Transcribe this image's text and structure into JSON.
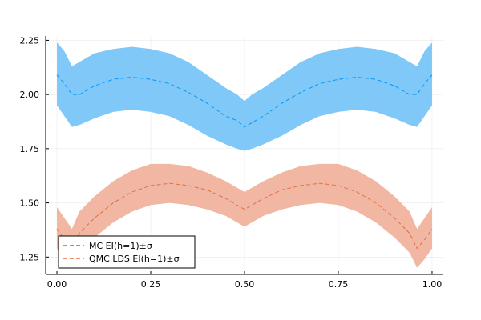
{
  "chart_data": {
    "type": "line",
    "title": "",
    "xlabel": "",
    "ylabel": "",
    "xlim": [
      -0.03,
      1.03
    ],
    "ylim": [
      1.17,
      2.27
    ],
    "xticks": [
      0.0,
      0.25,
      0.5,
      0.75,
      1.0
    ],
    "xtick_labels": [
      "0.00",
      "0.25",
      "0.50",
      "0.75",
      "1.00"
    ],
    "yticks": [
      1.25,
      1.5,
      1.75,
      2.0,
      2.25
    ],
    "ytick_labels": [
      "1.25",
      "1.50",
      "1.75",
      "2.00",
      "2.25"
    ],
    "grid": true,
    "legend_position": "bottom-left",
    "series": [
      {
        "name": "MC EI(h=1)±σ",
        "color": "#009AFA",
        "band_color": "#7FC8F8",
        "x": [
          0.0,
          0.02,
          0.04,
          0.06,
          0.1,
          0.15,
          0.2,
          0.25,
          0.3,
          0.35,
          0.4,
          0.45,
          0.48,
          0.5,
          0.52,
          0.55,
          0.6,
          0.65,
          0.7,
          0.75,
          0.8,
          0.85,
          0.9,
          0.94,
          0.96,
          0.98,
          1.0
        ],
        "mean": [
          2.09,
          2.05,
          2.0,
          2.0,
          2.04,
          2.07,
          2.08,
          2.07,
          2.05,
          2.01,
          1.96,
          1.9,
          1.88,
          1.85,
          1.87,
          1.9,
          1.96,
          2.01,
          2.05,
          2.07,
          2.08,
          2.07,
          2.04,
          2.0,
          2.0,
          2.05,
          2.09
        ],
        "upper": [
          2.24,
          2.2,
          2.13,
          2.15,
          2.19,
          2.21,
          2.22,
          2.21,
          2.19,
          2.15,
          2.09,
          2.03,
          2.0,
          1.97,
          2.0,
          2.03,
          2.09,
          2.15,
          2.19,
          2.21,
          2.22,
          2.21,
          2.19,
          2.15,
          2.13,
          2.2,
          2.24
        ],
        "lower": [
          1.95,
          1.9,
          1.85,
          1.86,
          1.89,
          1.92,
          1.93,
          1.92,
          1.9,
          1.86,
          1.81,
          1.77,
          1.75,
          1.74,
          1.75,
          1.77,
          1.81,
          1.86,
          1.9,
          1.92,
          1.93,
          1.92,
          1.89,
          1.86,
          1.85,
          1.9,
          1.95
        ]
      },
      {
        "name": "QMC LDS EI(h=1)±σ",
        "color": "#E26F46",
        "band_color": "#F1B7A2",
        "x": [
          0.0,
          0.02,
          0.04,
          0.06,
          0.1,
          0.15,
          0.2,
          0.25,
          0.3,
          0.35,
          0.4,
          0.45,
          0.5,
          0.55,
          0.6,
          0.65,
          0.7,
          0.75,
          0.8,
          0.85,
          0.9,
          0.94,
          0.96,
          0.98,
          1.0
        ],
        "mean": [
          1.38,
          1.33,
          1.29,
          1.36,
          1.43,
          1.5,
          1.55,
          1.58,
          1.59,
          1.58,
          1.56,
          1.52,
          1.47,
          1.52,
          1.56,
          1.58,
          1.59,
          1.58,
          1.55,
          1.5,
          1.43,
          1.36,
          1.29,
          1.33,
          1.38
        ],
        "upper": [
          1.48,
          1.43,
          1.38,
          1.46,
          1.53,
          1.6,
          1.65,
          1.68,
          1.68,
          1.67,
          1.64,
          1.6,
          1.55,
          1.6,
          1.64,
          1.67,
          1.68,
          1.68,
          1.65,
          1.6,
          1.53,
          1.46,
          1.38,
          1.43,
          1.48
        ],
        "lower": [
          1.29,
          1.24,
          1.2,
          1.27,
          1.34,
          1.41,
          1.46,
          1.49,
          1.5,
          1.49,
          1.47,
          1.44,
          1.39,
          1.44,
          1.47,
          1.49,
          1.5,
          1.49,
          1.46,
          1.41,
          1.34,
          1.27,
          1.2,
          1.24,
          1.29
        ]
      }
    ]
  }
}
